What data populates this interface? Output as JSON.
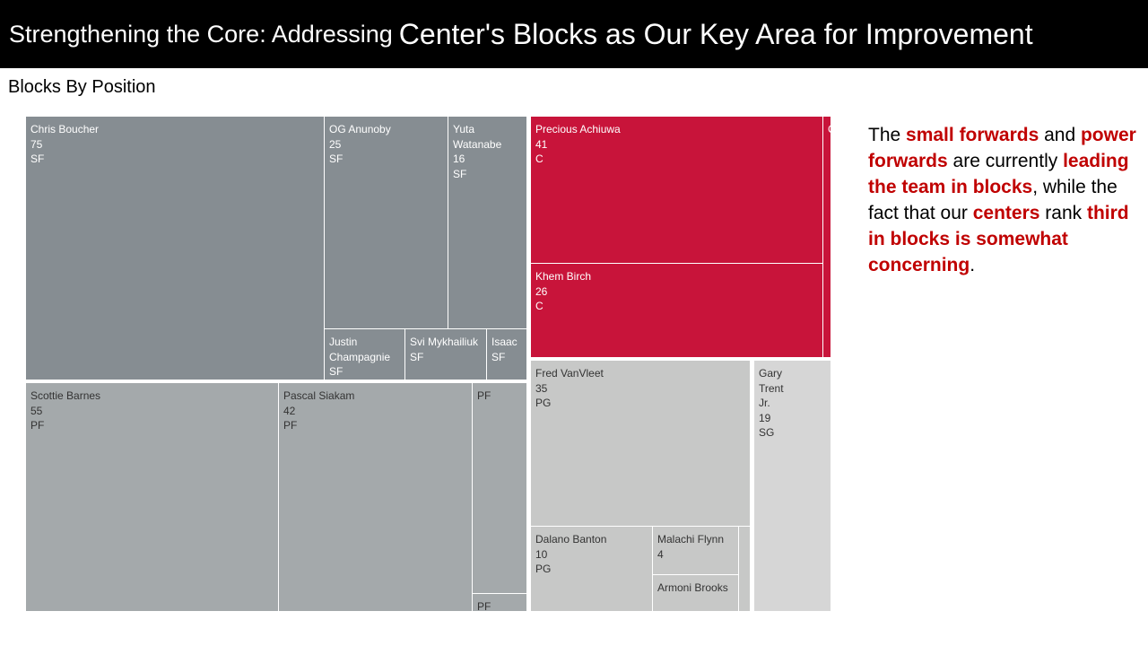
{
  "header": {
    "title_part1": "Strengthening the Core: Addressing",
    "title_part2": "Center's Blocks as Our Key Area for Improvement"
  },
  "chart_title": "Blocks By Position",
  "colors": {
    "SF": "#868d92",
    "PF": "#a4a9ab",
    "C": "#c8143a",
    "PG": "#c7c8c7",
    "SG": "#d6d6d6"
  },
  "chart_data": {
    "type": "treemap",
    "title": "Blocks By Position",
    "groups": [
      {
        "position": "SF",
        "players": [
          {
            "name": "Chris Boucher",
            "value": 75,
            "position": "SF"
          },
          {
            "name": "OG Anunoby",
            "value": 25,
            "position": "SF"
          },
          {
            "name": "Yuta Watanabe",
            "value": 16,
            "position": "SF"
          },
          {
            "name": "Justin Champagnie",
            "value": null,
            "position": "SF"
          },
          {
            "name": "Svi Mykhailiuk",
            "value": null,
            "position": "SF"
          },
          {
            "name": "Isaac",
            "value": null,
            "position": "SF"
          }
        ]
      },
      {
        "position": "PF",
        "players": [
          {
            "name": "Scottie Barnes",
            "value": 55,
            "position": "PF"
          },
          {
            "name": "Pascal Siakam",
            "value": 42,
            "position": "PF"
          },
          {
            "name": "",
            "value": null,
            "position": "PF"
          },
          {
            "name": "",
            "value": null,
            "position": "PF"
          }
        ]
      },
      {
        "position": "C",
        "players": [
          {
            "name": "Precious Achiuwa",
            "value": 41,
            "position": "C"
          },
          {
            "name": "Khem Birch",
            "value": 26,
            "position": "C"
          },
          {
            "name": "",
            "value": null,
            "position": "C"
          }
        ]
      },
      {
        "position": "PG",
        "players": [
          {
            "name": "Fred VanVleet",
            "value": 35,
            "position": "PG"
          },
          {
            "name": "Dalano Banton",
            "value": 10,
            "position": "PG"
          },
          {
            "name": "Malachi Flynn",
            "value": 4,
            "position": ""
          },
          {
            "name": "Armoni Brooks",
            "value": null,
            "position": ""
          },
          {
            "name": "",
            "value": null,
            "position": ""
          }
        ]
      },
      {
        "position": "SG",
        "players": [
          {
            "name": "Gary Trent Jr.",
            "value": 19,
            "position": "SG"
          }
        ]
      }
    ]
  },
  "narrative": [
    {
      "text": "The ",
      "hl": false
    },
    {
      "text": "small forwards",
      "hl": true
    },
    {
      "text": " and ",
      "hl": false
    },
    {
      "text": "power forwards",
      "hl": true
    },
    {
      "text": " are currently ",
      "hl": false
    },
    {
      "text": "leading the team in blocks",
      "hl": true
    },
    {
      "text": ", while the fact that our ",
      "hl": false
    },
    {
      "text": "centers",
      "hl": true
    },
    {
      "text": " rank ",
      "hl": false
    },
    {
      "text": "third in blocks is somewhat concerning",
      "hl": true
    },
    {
      "text": ".",
      "hl": false
    }
  ]
}
